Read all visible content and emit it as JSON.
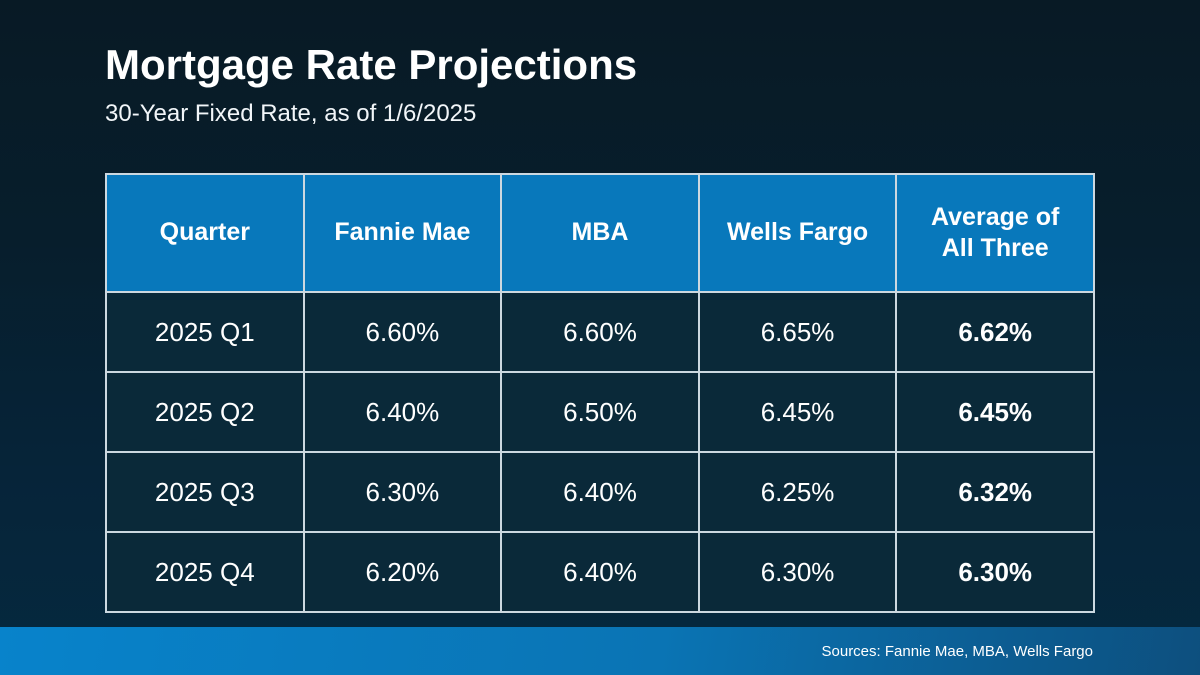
{
  "header": {
    "title": "Mortgage Rate Projections",
    "subtitle": "30-Year Fixed Rate, as of 1/6/2025"
  },
  "chart_data": {
    "type": "table",
    "title": "Mortgage Rate Projections",
    "subtitle": "30-Year Fixed Rate, as of 1/6/2025",
    "columns": [
      "Quarter",
      "Fannie Mae",
      "MBA",
      "Wells Fargo",
      "Average of All Three"
    ],
    "rows": [
      [
        "2025 Q1",
        "6.60%",
        "6.60%",
        "6.65%",
        "6.62%"
      ],
      [
        "2025 Q2",
        "6.40%",
        "6.50%",
        "6.45%",
        "6.45%"
      ],
      [
        "2025 Q3",
        "6.30%",
        "6.40%",
        "6.25%",
        "6.32%"
      ],
      [
        "2025 Q4",
        "6.20%",
        "6.40%",
        "6.30%",
        "6.30%"
      ]
    ],
    "numeric_series": [
      {
        "name": "Fannie Mae",
        "values": [
          6.6,
          6.4,
          6.3,
          6.2
        ]
      },
      {
        "name": "MBA",
        "values": [
          6.6,
          6.5,
          6.4,
          6.4
        ]
      },
      {
        "name": "Wells Fargo",
        "values": [
          6.65,
          6.45,
          6.25,
          6.3
        ]
      },
      {
        "name": "Average of All Three",
        "values": [
          6.62,
          6.45,
          6.32,
          6.3
        ]
      }
    ],
    "categories": [
      "2025 Q1",
      "2025 Q2",
      "2025 Q3",
      "2025 Q4"
    ],
    "unit": "%"
  },
  "footer": {
    "sources": "Sources: Fannie Mae, MBA, Wells Fargo"
  },
  "colors": {
    "background_top": "#081a25",
    "background_bottom": "#05293f",
    "table_header_blue": "#0878bb",
    "table_cell_navy": "#0a2939",
    "table_border": "#ccd8e0",
    "footer_gradient_left": "#0883cb",
    "footer_gradient_right": "#0d4f7e",
    "text": "#ffffff"
  }
}
